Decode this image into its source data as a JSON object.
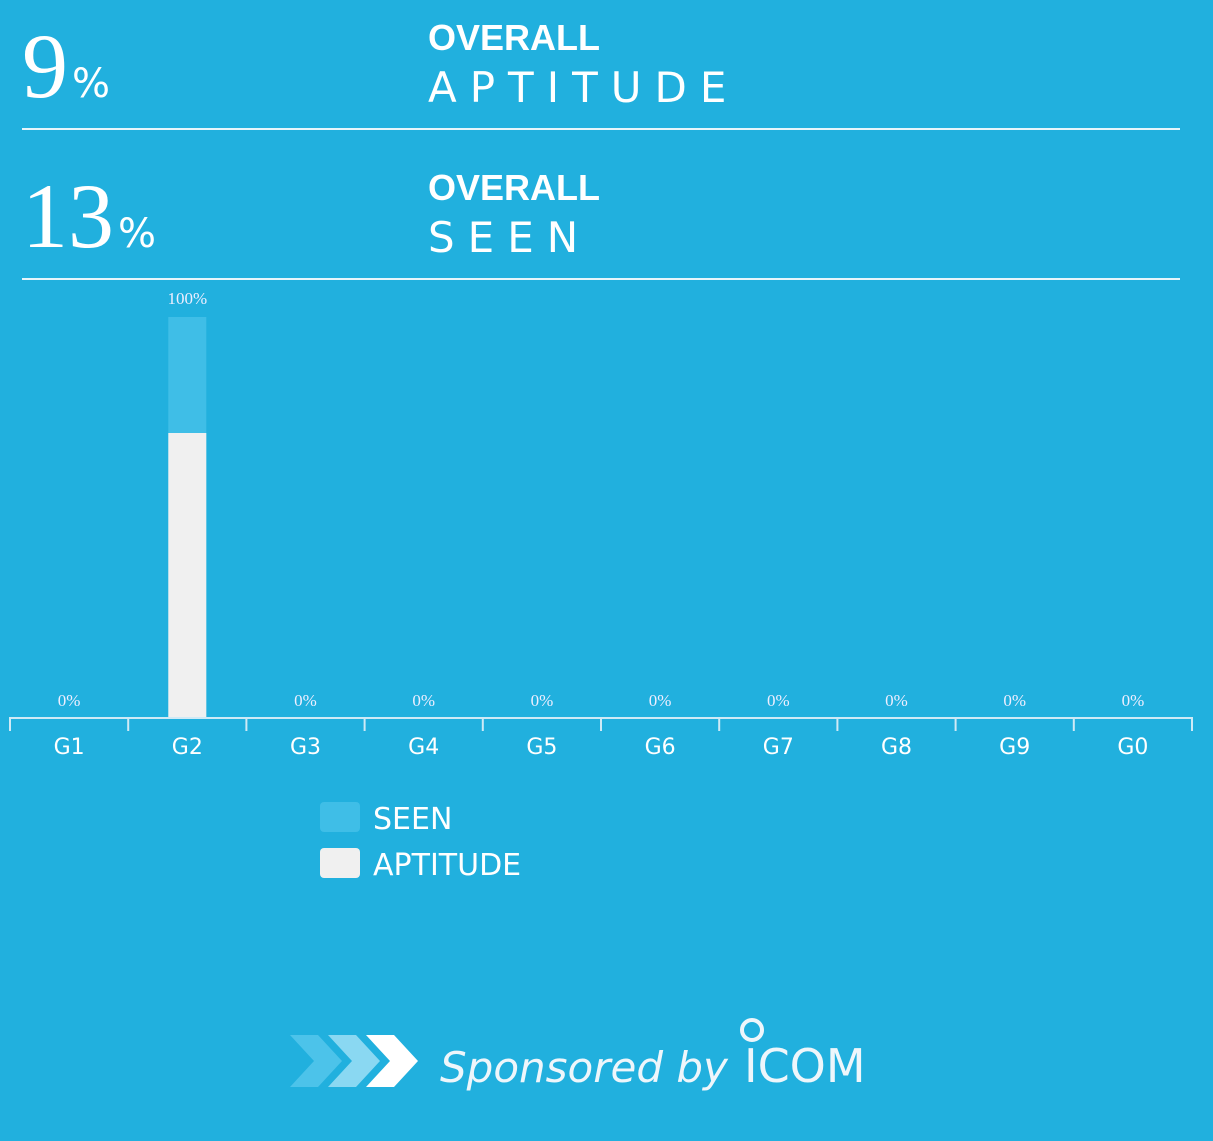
{
  "stats": [
    {
      "value": 9,
      "unit": "%",
      "label_top": "OVERALL",
      "label_bottom": "APTITUDE"
    },
    {
      "value": 13,
      "unit": "%",
      "label_top": "OVERALL",
      "label_bottom": "SEEN"
    }
  ],
  "chart_data": {
    "type": "bar",
    "categories": [
      "G1",
      "G2",
      "G3",
      "G4",
      "G5",
      "G6",
      "G7",
      "G8",
      "G9",
      "G0"
    ],
    "series": [
      {
        "name": "SEEN",
        "color": "#3fbee7",
        "values": [
          0,
          100,
          0,
          0,
          0,
          0,
          0,
          0,
          0,
          0
        ],
        "value_labels": [
          "0%",
          "100%",
          "0%",
          "0%",
          "0%",
          "0%",
          "0%",
          "0%",
          "0%",
          "0%"
        ]
      },
      {
        "name": "APTITUDE",
        "color": "#f0f0f0",
        "values": [
          0,
          71,
          0,
          0,
          0,
          0,
          0,
          0,
          0,
          0
        ]
      }
    ],
    "ylim": [
      0,
      100
    ]
  },
  "footer": {
    "text": "Sponsored by",
    "brand": "ICOM"
  }
}
